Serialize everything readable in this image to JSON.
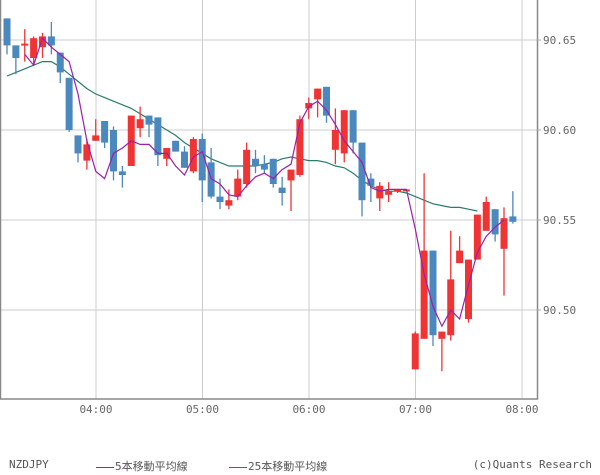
{
  "chart_data": {
    "type": "candlestick",
    "title": "NZDJPY",
    "symbol": "NZDJPY",
    "interval": "5min",
    "ylim": [
      90.462,
      90.672
    ],
    "yticks": [
      90.5,
      90.55,
      90.6,
      90.65
    ],
    "ytick_labels": [
      "90.50",
      "90.55",
      "90.60",
      "90.65"
    ],
    "xticks": [
      "04:00",
      "05:00",
      "06:00",
      "07:00",
      "08:00"
    ],
    "grid": true,
    "up_color": "#f03434",
    "down_color": "#4a88be",
    "ma5_color": "#9a1fb0",
    "ma25_color": "#2b7a6e",
    "legend": [
      {
        "label": "5本移動平均線",
        "color": "#9a1fb0"
      },
      {
        "label": "25本移動平均線",
        "color": "#2b7a6e"
      }
    ],
    "candles": [
      {
        "o": 90.662,
        "h": 90.662,
        "l": 90.642,
        "c": 90.647
      },
      {
        "o": 90.647,
        "h": 90.647,
        "l": 90.631,
        "c": 90.64
      },
      {
        "o": 90.647,
        "h": 90.656,
        "l": 90.638,
        "c": 90.648
      },
      {
        "o": 90.64,
        "h": 90.652,
        "l": 90.636,
        "c": 90.651
      },
      {
        "o": 90.646,
        "h": 90.654,
        "l": 90.64,
        "c": 90.652
      },
      {
        "o": 90.652,
        "h": 90.66,
        "l": 90.642,
        "c": 90.647
      },
      {
        "o": 90.643,
        "h": 90.643,
        "l": 90.626,
        "c": 90.632
      },
      {
        "o": 90.629,
        "h": 90.629,
        "l": 90.599,
        "c": 90.6
      },
      {
        "o": 90.597,
        "h": 90.597,
        "l": 90.582,
        "c": 90.587
      },
      {
        "o": 90.583,
        "h": 90.595,
        "l": 90.578,
        "c": 90.592
      },
      {
        "o": 90.594,
        "h": 90.606,
        "l": 90.594,
        "c": 90.597
      },
      {
        "o": 90.605,
        "h": 90.605,
        "l": 90.59,
        "c": 90.593
      },
      {
        "o": 90.6,
        "h": 90.602,
        "l": 90.572,
        "c": 90.577
      },
      {
        "o": 90.577,
        "h": 90.58,
        "l": 90.568,
        "c": 90.575
      },
      {
        "o": 90.58,
        "h": 90.608,
        "l": 90.58,
        "c": 90.608
      },
      {
        "o": 90.601,
        "h": 90.613,
        "l": 90.596,
        "c": 90.606
      },
      {
        "o": 90.608,
        "h": 90.608,
        "l": 90.596,
        "c": 90.603
      },
      {
        "o": 90.607,
        "h": 90.607,
        "l": 90.58,
        "c": 90.586
      },
      {
        "o": 90.584,
        "h": 90.588,
        "l": 90.58,
        "c": 90.59
      },
      {
        "o": 90.594,
        "h": 90.594,
        "l": 90.589,
        "c": 90.588
      },
      {
        "o": 90.588,
        "h": 90.591,
        "l": 90.581,
        "c": 90.579
      },
      {
        "o": 90.577,
        "h": 90.596,
        "l": 90.576,
        "c": 90.595
      },
      {
        "o": 90.595,
        "h": 90.598,
        "l": 90.56,
        "c": 90.572
      },
      {
        "o": 90.582,
        "h": 90.59,
        "l": 90.562,
        "c": 90.563
      },
      {
        "o": 90.563,
        "h": 90.573,
        "l": 90.556,
        "c": 90.56
      },
      {
        "o": 90.558,
        "h": 90.567,
        "l": 90.556,
        "c": 90.561
      },
      {
        "o": 90.563,
        "h": 90.578,
        "l": 90.561,
        "c": 90.573
      },
      {
        "o": 90.57,
        "h": 90.593,
        "l": 90.568,
        "c": 90.589
      },
      {
        "o": 90.584,
        "h": 90.589,
        "l": 90.576,
        "c": 90.58
      },
      {
        "o": 90.581,
        "h": 90.586,
        "l": 90.576,
        "c": 90.578
      },
      {
        "o": 90.584,
        "h": 90.584,
        "l": 90.568,
        "c": 90.57
      },
      {
        "o": 90.568,
        "h": 90.574,
        "l": 90.558,
        "c": 90.565
      },
      {
        "o": 90.572,
        "h": 90.575,
        "l": 90.555,
        "c": 90.578
      },
      {
        "o": 90.575,
        "h": 90.608,
        "l": 90.574,
        "c": 90.606
      },
      {
        "o": 90.612,
        "h": 90.618,
        "l": 90.606,
        "c": 90.615
      },
      {
        "o": 90.617,
        "h": 90.616,
        "l": 90.607,
        "c": 90.623
      },
      {
        "o": 90.624,
        "h": 90.624,
        "l": 90.604,
        "c": 90.608
      },
      {
        "o": 90.589,
        "h": 90.612,
        "l": 90.581,
        "c": 90.6
      },
      {
        "o": 90.587,
        "h": 90.611,
        "l": 90.582,
        "c": 90.611
      },
      {
        "o": 90.611,
        "h": 90.611,
        "l": 90.587,
        "c": 90.593
      },
      {
        "o": 90.593,
        "h": 90.593,
        "l": 90.552,
        "c": 90.561
      },
      {
        "o": 90.573,
        "h": 90.576,
        "l": 90.56,
        "c": 90.569
      },
      {
        "o": 90.562,
        "h": 90.571,
        "l": 90.555,
        "c": 90.569
      },
      {
        "o": 90.564,
        "h": 90.571,
        "l": 90.56,
        "c": 90.566
      },
      {
        "o": 90.566,
        "h": 90.567,
        "l": 90.565,
        "c": 90.567
      },
      {
        "o": 90.567,
        "h": 90.567,
        "l": 90.567,
        "c": 90.567
      },
      {
        "o": 90.467,
        "h": 90.488,
        "l": 90.467,
        "c": 90.487
      },
      {
        "o": 90.484,
        "h": 90.576,
        "l": 90.484,
        "c": 90.533
      },
      {
        "o": 90.533,
        "h": 90.533,
        "l": 90.48,
        "c": 90.486
      },
      {
        "o": 90.484,
        "h": 90.488,
        "l": 90.466,
        "c": 90.488
      },
      {
        "o": 90.486,
        "h": 90.544,
        "l": 90.483,
        "c": 90.517
      },
      {
        "o": 90.526,
        "h": 90.541,
        "l": 90.526,
        "c": 90.533
      },
      {
        "o": 90.495,
        "h": 90.524,
        "l": 90.493,
        "c": 90.528
      },
      {
        "o": 90.528,
        "h": 90.548,
        "l": 90.528,
        "c": 90.553
      },
      {
        "o": 90.544,
        "h": 90.563,
        "l": 90.544,
        "c": 90.56
      },
      {
        "o": 90.556,
        "h": 90.556,
        "l": 90.538,
        "c": 90.542
      },
      {
        "o": 90.534,
        "h": 90.557,
        "l": 90.508,
        "c": 90.551
      },
      {
        "o": 90.552,
        "h": 90.566,
        "l": 90.548,
        "c": 90.549
      }
    ],
    "ma5": [
      90.642,
      90.636,
      90.651,
      90.646,
      90.642,
      90.638,
      90.62,
      90.594,
      90.577,
      90.573,
      90.587,
      90.59,
      90.594,
      90.592,
      90.592,
      90.587,
      90.587,
      90.58,
      90.575,
      90.585,
      90.588,
      90.573,
      90.57,
      90.564,
      90.563,
      90.569,
      90.574,
      90.576,
      90.573,
      90.578,
      90.581,
      90.604,
      90.613,
      90.616,
      90.611,
      90.603,
      90.594,
      90.588,
      90.582,
      90.568,
      90.566,
      90.567,
      90.567,
      90.567,
      90.545,
      90.52,
      90.502,
      90.491,
      90.5,
      90.495,
      90.514,
      90.532,
      90.541,
      90.546,
      90.55
    ],
    "ma25": [
      90.63,
      90.632,
      90.634,
      90.636,
      90.638,
      90.638,
      90.635,
      90.631,
      90.627,
      90.623,
      90.62,
      90.618,
      90.616,
      90.614,
      90.612,
      90.609,
      90.606,
      90.603,
      90.6,
      90.597,
      90.593,
      90.59,
      90.587,
      90.584,
      90.582,
      90.58,
      90.58,
      90.58,
      90.58,
      90.581,
      90.582,
      90.584,
      90.585,
      90.584,
      90.583,
      90.583,
      90.582,
      90.58,
      90.579,
      90.576,
      90.572,
      90.569,
      90.567,
      90.566,
      90.566,
      90.565,
      90.563,
      90.561,
      90.559,
      90.558,
      90.557,
      90.557,
      90.556,
      90.555
    ]
  },
  "footer": {
    "symbol": "NZDJPY",
    "legend_ma5": "5本移動平均線",
    "legend_ma25": "25本移動平均線",
    "copyright": "(c)Quants Research"
  }
}
